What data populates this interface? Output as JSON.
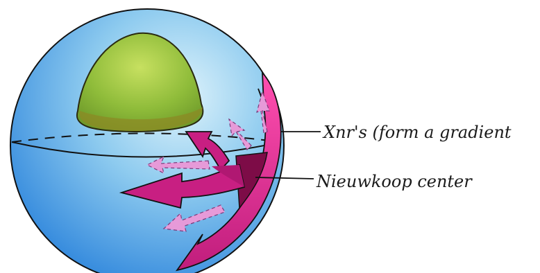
{
  "labels": {
    "xnrs": "Xnr's (form a gradient",
    "nieuwkoop": "Nieuwkoop center"
  },
  "colors": {
    "sphere": "#3a8fe0",
    "sphere_light": "#bfe3f5",
    "yolk_cap": "#9cc43a",
    "cap_shadow": "#8a8a1a",
    "arrow_magenta": "#d81f8a",
    "arrow_dark": "#8a1050",
    "arrow_light": "#e48fd6",
    "ink": "#1a1a1a"
  }
}
